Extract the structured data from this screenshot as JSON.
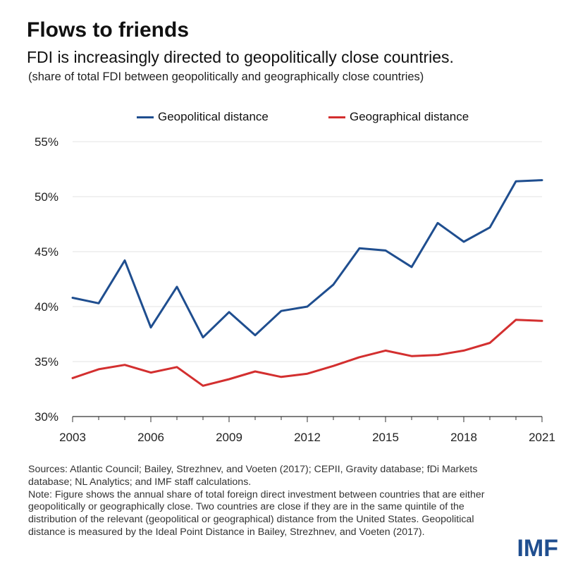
{
  "header": {
    "title": "Flows to friends",
    "subtitle": "FDI is increasingly directed to geopolitically close countries.",
    "note": "(share of total FDI between geopolitically and geographically close countries)"
  },
  "chart_data": {
    "type": "line",
    "x": [
      2003,
      2004,
      2005,
      2006,
      2007,
      2008,
      2009,
      2010,
      2011,
      2012,
      2013,
      2014,
      2015,
      2016,
      2017,
      2018,
      2019,
      2020,
      2021
    ],
    "x_tick_labels": [
      "2003",
      "2006",
      "2009",
      "2012",
      "2015",
      "2018",
      "2021"
    ],
    "y_tick_labels": [
      "30%",
      "35%",
      "40%",
      "45%",
      "50%",
      "55%"
    ],
    "ylim": [
      30,
      55
    ],
    "grid": true,
    "legend_position": "top-center",
    "series": [
      {
        "name": "Geopolitical distance",
        "color": "#1f4e8f",
        "values": [
          40.8,
          40.3,
          44.2,
          38.1,
          41.8,
          37.2,
          39.5,
          37.4,
          39.6,
          40.0,
          42.0,
          45.3,
          45.1,
          43.6,
          47.6,
          45.9,
          47.2,
          51.4,
          51.5
        ]
      },
      {
        "name": "Geographical distance",
        "color": "#d32f2f",
        "values": [
          33.5,
          34.3,
          34.7,
          34.0,
          34.5,
          32.8,
          33.4,
          34.1,
          33.6,
          33.9,
          34.6,
          35.4,
          36.0,
          35.5,
          35.6,
          36.0,
          36.7,
          38.8,
          38.7
        ]
      }
    ]
  },
  "footer": {
    "sources": "Sources: Atlantic Council; Bailey, Strezhnev, and Voeten (2017); CEPII, Gravity database; fDi Markets database; NL Analytics; and IMF staff calculations.",
    "note": "Note: Figure shows the annual share of total foreign direct investment between countries that are either geopolitically or geographically close. Two countries are close if they are in the same quintile of the distribution of the relevant (geopolitical or geographical) distance from the United States. Geopolitical distance is measured by the Ideal Point Distance in Bailey, Strezhnev, and Voeten (2017)."
  },
  "logo": "IMF"
}
